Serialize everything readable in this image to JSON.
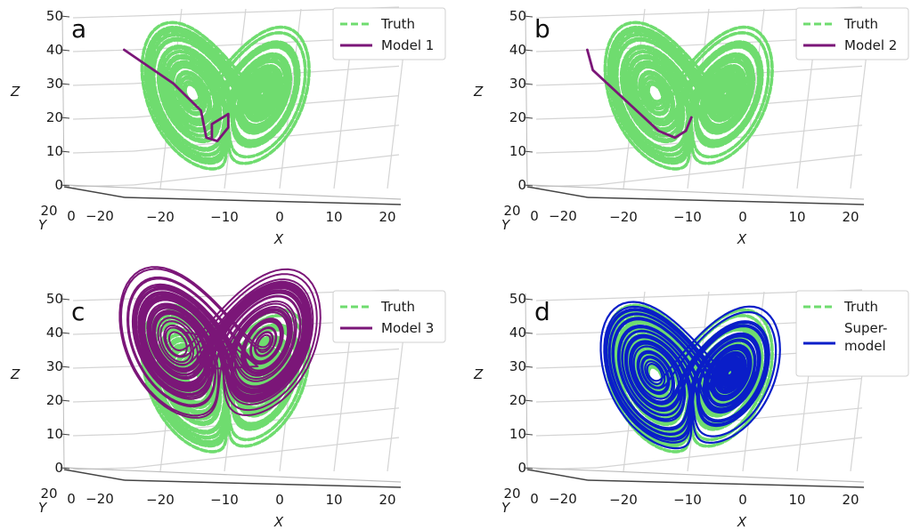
{
  "chart_data": [
    {
      "type": "line",
      "panel_label": "a",
      "xlabel": "X",
      "ylabel": "Y",
      "zlabel": "Z",
      "x_ticks": [
        "−20",
        "−10",
        "0",
        "10",
        "20"
      ],
      "y_ticks": [
        "20",
        "0",
        "−20"
      ],
      "z_ticks": [
        "0",
        "10",
        "20",
        "30",
        "40",
        "50"
      ],
      "zlim": [
        0,
        50
      ],
      "grid": true,
      "legend_position": "top-right",
      "legend": [
        {
          "name": "Truth",
          "style": "dashed",
          "color": "#6fdc6f"
        },
        {
          "name": "Model 1",
          "style": "solid",
          "color": "#7b1678"
        }
      ],
      "series": [
        {
          "name": "Truth",
          "kind": "lorenz-butterfly",
          "color": "#6fdc6f"
        },
        {
          "name": "Model 1",
          "kind": "transient-then-small-loop",
          "color": "#7b1678",
          "path_xz": [
            [
              -17,
              40
            ],
            [
              -8,
              30
            ],
            [
              -3,
              22
            ],
            [
              -2,
              14
            ],
            [
              0,
              13
            ],
            [
              2,
              17
            ],
            [
              2,
              21
            ],
            [
              -1,
              18
            ],
            [
              -1,
              14
            ]
          ]
        }
      ]
    },
    {
      "type": "line",
      "panel_label": "b",
      "xlabel": "X",
      "ylabel": "Y",
      "zlabel": "Z",
      "x_ticks": [
        "−20",
        "−10",
        "0",
        "10",
        "20"
      ],
      "y_ticks": [
        "20",
        "0",
        "−20"
      ],
      "z_ticks": [
        "0",
        "10",
        "20",
        "30",
        "40",
        "50"
      ],
      "zlim": [
        0,
        50
      ],
      "grid": true,
      "legend_position": "top-right",
      "legend": [
        {
          "name": "Truth",
          "style": "dashed",
          "color": "#6fdc6f"
        },
        {
          "name": "Model 2",
          "style": "solid",
          "color": "#7b1678"
        }
      ],
      "series": [
        {
          "name": "Truth",
          "kind": "lorenz-butterfly",
          "color": "#6fdc6f"
        },
        {
          "name": "Model 2",
          "kind": "transient-to-fixed-point",
          "color": "#7b1678",
          "path_xz": [
            [
              -17,
              40
            ],
            [
              -16,
              34
            ],
            [
              -10,
              25
            ],
            [
              -4,
              16
            ],
            [
              -1,
              14
            ],
            [
              1,
              16
            ],
            [
              2,
              20
            ]
          ]
        }
      ]
    },
    {
      "type": "line",
      "panel_label": "c",
      "xlabel": "X",
      "ylabel": "Y",
      "zlabel": "Z",
      "x_ticks": [
        "−20",
        "−10",
        "0",
        "10",
        "20"
      ],
      "y_ticks": [
        "20",
        "0",
        "−20"
      ],
      "z_ticks": [
        "0",
        "10",
        "20",
        "30",
        "40",
        "50"
      ],
      "zlim": [
        0,
        50
      ],
      "grid": true,
      "legend_position": "top-right",
      "legend": [
        {
          "name": "Truth",
          "style": "dashed",
          "color": "#6fdc6f"
        },
        {
          "name": "Model 3",
          "style": "solid",
          "color": "#7b1678"
        }
      ],
      "series": [
        {
          "name": "Truth",
          "kind": "lorenz-butterfly",
          "color": "#6fdc6f"
        },
        {
          "name": "Model 3",
          "kind": "wide-chaotic-attractor",
          "color": "#7b1678"
        }
      ]
    },
    {
      "type": "line",
      "panel_label": "d",
      "xlabel": "X",
      "ylabel": "Y",
      "zlabel": "Z",
      "x_ticks": [
        "−20",
        "−10",
        "0",
        "10",
        "20"
      ],
      "y_ticks": [
        "20",
        "0",
        "−20"
      ],
      "z_ticks": [
        "0",
        "10",
        "20",
        "30",
        "40",
        "50"
      ],
      "zlim": [
        0,
        50
      ],
      "grid": true,
      "legend_position": "top-right",
      "legend": [
        {
          "name": "Truth",
          "style": "dashed",
          "color": "#6fdc6f"
        },
        {
          "name": "Super-\nmodel",
          "style": "solid",
          "color": "#0a1ec8"
        }
      ],
      "series": [
        {
          "name": "Truth",
          "kind": "lorenz-butterfly",
          "color": "#6fdc6f"
        },
        {
          "name": "Super-\nmodel",
          "kind": "lorenz-butterfly-wide",
          "color": "#0a1ec8"
        }
      ]
    }
  ]
}
